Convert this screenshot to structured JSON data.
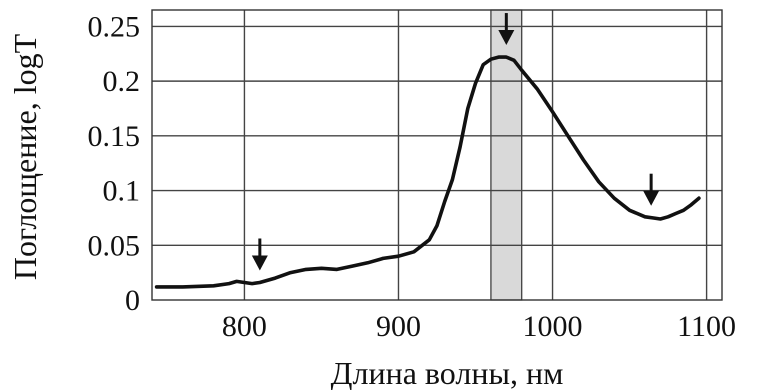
{
  "chart_data": {
    "type": "line",
    "xlabel": "Длина волны, нм",
    "ylabel": "Поглощение, logT",
    "xlim": [
      740,
      1110
    ],
    "ylim": [
      0,
      0.265
    ],
    "xticks": [
      800,
      900,
      1000,
      1100
    ],
    "xtick_labels": [
      "800",
      "900",
      "1000",
      "1100"
    ],
    "yticks": [
      0,
      0.05,
      0.1,
      0.15,
      0.2,
      0.25
    ],
    "ytick_labels": [
      "0",
      "0.05",
      "0.1",
      "0.15",
      "0.2",
      "0.25"
    ],
    "grid": true,
    "highlight_band": [
      960,
      980
    ],
    "arrows_at": [
      {
        "x": 810
      },
      {
        "x": 970
      },
      {
        "x": 1064
      }
    ],
    "series": [
      {
        "x": [
          743,
          760,
          780,
          790,
          795,
          800,
          805,
          810,
          820,
          830,
          840,
          850,
          860,
          870,
          880,
          890,
          900,
          910,
          920,
          925,
          930,
          935,
          940,
          945,
          950,
          955,
          960,
          965,
          970,
          975,
          980,
          990,
          1000,
          1010,
          1020,
          1030,
          1040,
          1050,
          1060,
          1065,
          1070,
          1075,
          1080,
          1085,
          1090,
          1095
        ],
        "y": [
          0.012,
          0.012,
          0.013,
          0.015,
          0.017,
          0.016,
          0.015,
          0.016,
          0.02,
          0.025,
          0.028,
          0.029,
          0.028,
          0.031,
          0.034,
          0.038,
          0.04,
          0.044,
          0.055,
          0.068,
          0.09,
          0.11,
          0.14,
          0.175,
          0.198,
          0.215,
          0.22,
          0.222,
          0.222,
          0.219,
          0.21,
          0.193,
          0.172,
          0.15,
          0.128,
          0.108,
          0.093,
          0.082,
          0.076,
          0.075,
          0.074,
          0.076,
          0.079,
          0.082,
          0.087,
          0.093
        ]
      }
    ]
  }
}
